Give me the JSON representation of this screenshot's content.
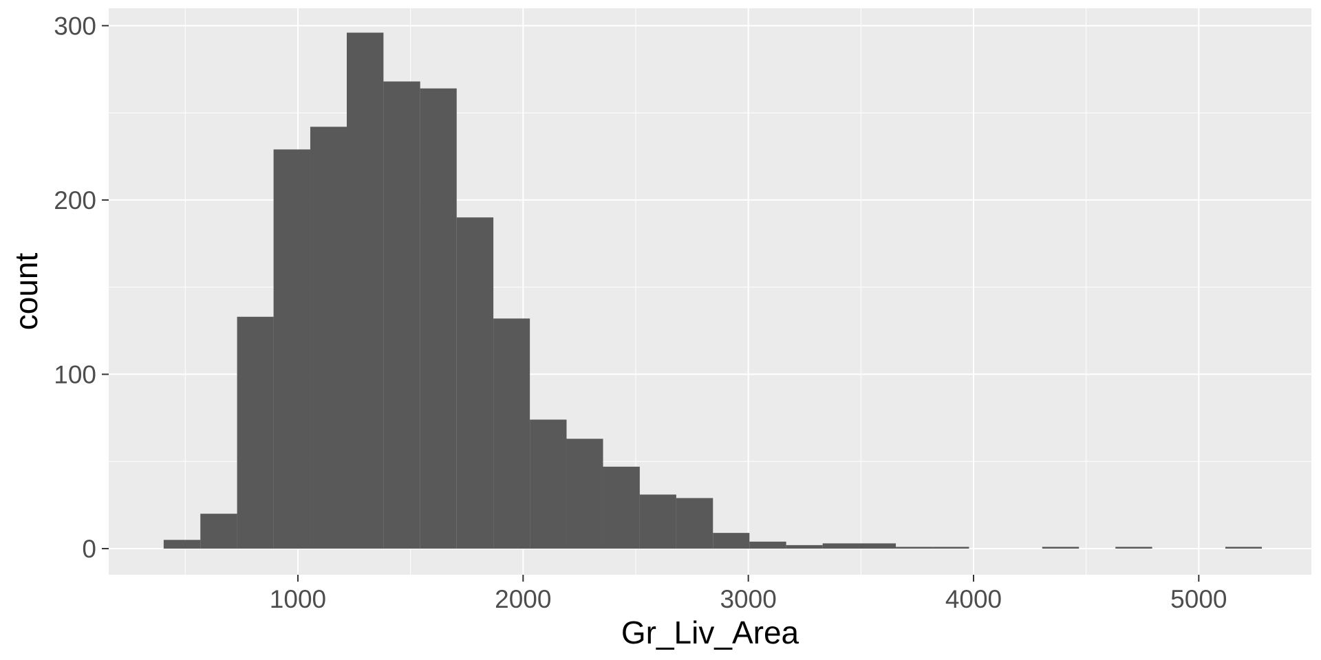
{
  "chart_data": {
    "type": "bar",
    "subtype": "histogram",
    "xlabel": "Gr_Liv_Area",
    "ylabel": "count",
    "xlim": [
      160,
      5500
    ],
    "ylim": [
      -15,
      310
    ],
    "x_ticks": [
      1000,
      2000,
      3000,
      4000,
      5000
    ],
    "x_tick_labels": [
      "1000",
      "2000",
      "3000",
      "4000",
      "5000"
    ],
    "x_minor_ticks": [
      500,
      1500,
      2500,
      3500,
      4500
    ],
    "y_ticks": [
      0,
      100,
      200,
      300
    ],
    "y_tick_labels": [
      "0",
      "100",
      "200",
      "300"
    ],
    "y_minor_ticks": [
      50,
      150,
      250
    ],
    "grid": true,
    "bar_color": "#595959",
    "panel_background": "#ebebeb",
    "grid_color": "#ffffff",
    "bins": [
      {
        "x0": 404,
        "x1": 567,
        "count": 5
      },
      {
        "x0": 567,
        "x1": 730,
        "count": 20
      },
      {
        "x0": 730,
        "x1": 892,
        "count": 133
      },
      {
        "x0": 892,
        "x1": 1055,
        "count": 229
      },
      {
        "x0": 1055,
        "x1": 1217,
        "count": 242
      },
      {
        "x0": 1217,
        "x1": 1380,
        "count": 296
      },
      {
        "x0": 1380,
        "x1": 1543,
        "count": 268
      },
      {
        "x0": 1543,
        "x1": 1705,
        "count": 264
      },
      {
        "x0": 1705,
        "x1": 1868,
        "count": 190
      },
      {
        "x0": 1868,
        "x1": 2030,
        "count": 132
      },
      {
        "x0": 2030,
        "x1": 2193,
        "count": 74
      },
      {
        "x0": 2193,
        "x1": 2355,
        "count": 63
      },
      {
        "x0": 2355,
        "x1": 2518,
        "count": 47
      },
      {
        "x0": 2518,
        "x1": 2680,
        "count": 31
      },
      {
        "x0": 2680,
        "x1": 2843,
        "count": 29
      },
      {
        "x0": 2843,
        "x1": 3005,
        "count": 9
      },
      {
        "x0": 3005,
        "x1": 3168,
        "count": 4
      },
      {
        "x0": 3168,
        "x1": 3330,
        "count": 2
      },
      {
        "x0": 3330,
        "x1": 3493,
        "count": 3
      },
      {
        "x0": 3493,
        "x1": 3655,
        "count": 3
      },
      {
        "x0": 3655,
        "x1": 3818,
        "count": 1
      },
      {
        "x0": 3818,
        "x1": 3980,
        "count": 1
      },
      {
        "x0": 3980,
        "x1": 4143,
        "count": 0
      },
      {
        "x0": 4143,
        "x1": 4305,
        "count": 0
      },
      {
        "x0": 4305,
        "x1": 4468,
        "count": 1
      },
      {
        "x0": 4468,
        "x1": 4630,
        "count": 0
      },
      {
        "x0": 4630,
        "x1": 4793,
        "count": 1
      },
      {
        "x0": 4793,
        "x1": 4955,
        "count": 0
      },
      {
        "x0": 4955,
        "x1": 5118,
        "count": 0
      },
      {
        "x0": 5118,
        "x1": 5280,
        "count": 1
      }
    ]
  }
}
